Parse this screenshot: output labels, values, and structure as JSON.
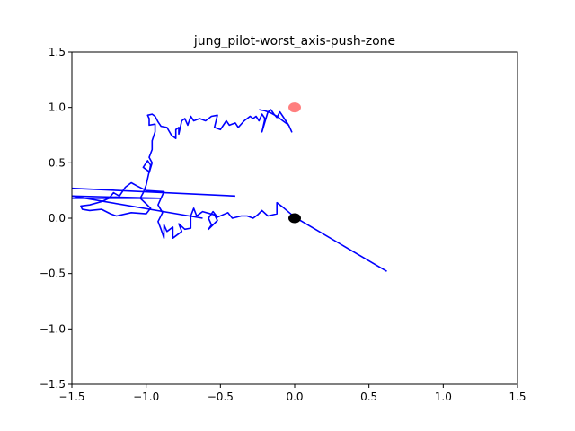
{
  "chart_data": {
    "type": "line",
    "title": "jung_pilot-worst_axis-push-zone",
    "xlabel": "",
    "ylabel": "",
    "xlim": [
      -1.5,
      1.5
    ],
    "ylim": [
      -1.5,
      1.5
    ],
    "x_ticks": [
      -1.5,
      -1.0,
      -0.5,
      0.0,
      0.5,
      1.0,
      1.5
    ],
    "y_ticks": [
      -1.5,
      -1.0,
      -0.5,
      0.0,
      0.5,
      1.0,
      1.5
    ],
    "x_tick_labels": [
      "−1.5",
      "−1.0",
      "−0.5",
      "0.0",
      "0.5",
      "1.0",
      "1.5"
    ],
    "y_tick_labels": [
      "−1.5",
      "−1.0",
      "−0.5",
      "0.0",
      "0.5",
      "1.0",
      "1.5"
    ],
    "grid": false,
    "trajectory": {
      "color": "#0000ff",
      "points": [
        [
          0.62,
          -0.48
        ],
        [
          0.0,
          0.01
        ],
        [
          -0.08,
          0.1
        ],
        [
          -0.12,
          0.14
        ],
        [
          -0.12,
          0.04
        ],
        [
          -0.18,
          0.02
        ],
        [
          -0.22,
          0.07
        ],
        [
          -0.25,
          0.03
        ],
        [
          -0.28,
          0.0
        ],
        [
          -0.32,
          0.02
        ],
        [
          -0.36,
          0.02
        ],
        [
          -0.42,
          0.0
        ],
        [
          -0.45,
          0.05
        ],
        [
          -0.52,
          0.01
        ],
        [
          -0.55,
          0.06
        ],
        [
          -0.58,
          0.0
        ],
        [
          -0.56,
          -0.06
        ],
        [
          -0.58,
          -0.1
        ],
        [
          -0.52,
          -0.02
        ],
        [
          -0.54,
          0.03
        ],
        [
          -0.62,
          0.06
        ],
        [
          -0.66,
          0.02
        ],
        [
          -0.68,
          0.09
        ],
        [
          -0.7,
          0.02
        ],
        [
          -0.7,
          -0.09
        ],
        [
          -0.74,
          -0.1
        ],
        [
          -0.78,
          -0.05
        ],
        [
          -0.76,
          -0.12
        ],
        [
          -0.82,
          -0.18
        ],
        [
          -0.82,
          -0.08
        ],
        [
          -0.86,
          -0.12
        ],
        [
          -0.88,
          -0.06
        ],
        [
          -0.88,
          -0.18
        ],
        [
          -0.9,
          -0.1
        ],
        [
          -0.92,
          -0.03
        ],
        [
          -0.89,
          0.05
        ],
        [
          -0.92,
          0.12
        ],
        [
          -0.88,
          0.24
        ],
        [
          -1.0,
          0.25
        ],
        [
          -1.06,
          0.29
        ],
        [
          -1.1,
          0.32
        ],
        [
          -1.14,
          0.28
        ],
        [
          -1.18,
          0.2
        ],
        [
          -1.22,
          0.23
        ],
        [
          -1.25,
          0.18
        ],
        [
          -1.3,
          0.15
        ],
        [
          -1.38,
          0.12
        ],
        [
          -1.44,
          0.11
        ],
        [
          -1.43,
          0.08
        ],
        [
          -1.38,
          0.07
        ],
        [
          -1.3,
          0.08
        ],
        [
          -1.24,
          0.04
        ],
        [
          -1.2,
          0.02
        ],
        [
          -1.1,
          0.05
        ],
        [
          -1.0,
          0.04
        ],
        [
          -0.97,
          0.09
        ],
        [
          -1.0,
          0.13
        ],
        [
          -1.04,
          0.18
        ],
        [
          -1.02,
          0.23
        ],
        [
          -1.0,
          0.3
        ],
        [
          -0.98,
          0.42
        ],
        [
          -1.02,
          0.46
        ],
        [
          -0.99,
          0.52
        ],
        [
          -0.97,
          0.48
        ],
        [
          -0.98,
          0.41
        ],
        [
          -0.96,
          0.5
        ],
        [
          -0.98,
          0.55
        ],
        [
          -0.96,
          0.62
        ],
        [
          -0.96,
          0.7
        ],
        [
          -0.94,
          0.78
        ],
        [
          -0.94,
          0.85
        ],
        [
          -0.98,
          0.84
        ],
        [
          -0.98,
          0.9
        ],
        [
          -0.99,
          0.93
        ],
        [
          -0.96,
          0.94
        ],
        [
          -0.94,
          0.92
        ],
        [
          -0.92,
          0.87
        ],
        [
          -0.9,
          0.83
        ],
        [
          -0.86,
          0.82
        ],
        [
          -0.83,
          0.75
        ],
        [
          -0.8,
          0.72
        ],
        [
          -0.8,
          0.8
        ],
        [
          -0.78,
          0.82
        ],
        [
          -0.78,
          0.76
        ],
        [
          -0.76,
          0.88
        ],
        [
          -0.74,
          0.9
        ],
        [
          -0.72,
          0.84
        ],
        [
          -0.7,
          0.92
        ],
        [
          -0.68,
          0.88
        ],
        [
          -0.64,
          0.9
        ],
        [
          -0.6,
          0.88
        ],
        [
          -0.56,
          0.92
        ],
        [
          -0.52,
          0.93
        ],
        [
          -0.54,
          0.82
        ],
        [
          -0.5,
          0.8
        ],
        [
          -0.46,
          0.88
        ],
        [
          -0.44,
          0.84
        ],
        [
          -0.4,
          0.86
        ],
        [
          -0.38,
          0.82
        ],
        [
          -0.34,
          0.88
        ],
        [
          -0.3,
          0.92
        ],
        [
          -0.28,
          0.9
        ],
        [
          -0.26,
          0.92
        ],
        [
          -0.24,
          0.88
        ],
        [
          -0.22,
          0.94
        ],
        [
          -0.2,
          0.9
        ],
        [
          -0.22,
          0.78
        ],
        [
          -0.18,
          0.96
        ],
        [
          -0.16,
          0.98
        ],
        [
          -0.14,
          0.94
        ],
        [
          -0.12,
          0.91
        ],
        [
          -0.1,
          0.96
        ],
        [
          -0.08,
          0.92
        ],
        [
          -0.06,
          0.88
        ],
        [
          -0.04,
          0.84
        ],
        [
          -0.02,
          0.78
        ],
        [
          -0.04,
          0.84
        ],
        [
          -0.08,
          0.88
        ],
        [
          -0.12,
          0.92
        ],
        [
          -0.16,
          0.95
        ],
        [
          -0.2,
          0.97
        ],
        [
          -0.24,
          0.98
        ]
      ]
    },
    "overshoot_lines": {
      "color": "#0000ff",
      "points": [
        [
          -0.4,
          0.2
        ],
        [
          -1.5,
          0.27
        ]
      ],
      "points2": [
        [
          -1.5,
          0.18
        ],
        [
          -0.9,
          0.18
        ],
        [
          -1.5,
          0.2
        ]
      ],
      "points3": [
        [
          -1.5,
          0.2
        ],
        [
          -0.62,
          0.0
        ]
      ]
    },
    "markers": [
      {
        "name": "start",
        "x": 0.0,
        "y": 0.0,
        "color": "#000000",
        "alpha": 1.0
      },
      {
        "name": "goal",
        "x": 0.0,
        "y": 1.0,
        "color": "#ff0000",
        "alpha": 0.5
      }
    ]
  }
}
